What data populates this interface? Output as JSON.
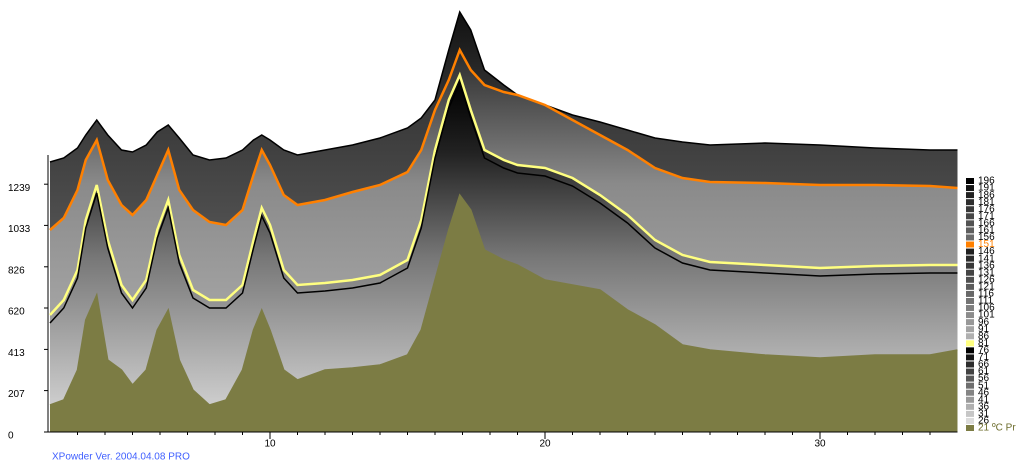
{
  "chart_data": {
    "type": "waterfall",
    "x": [
      2,
      2.5,
      3,
      3.3,
      3.7,
      4.1,
      4.6,
      5,
      5.5,
      5.9,
      6.3,
      6.7,
      7.2,
      7.8,
      8.4,
      9,
      9.4,
      9.7,
      10,
      10.5,
      11,
      12,
      13,
      14,
      15,
      15.5,
      16,
      16.5,
      16.9,
      17.3,
      17.8,
      18.5,
      19,
      20,
      21,
      22,
      23,
      24,
      25,
      26,
      28,
      30,
      32,
      34,
      35
    ],
    "xlim": [
      2,
      35
    ],
    "ylim": [
      0,
      2110
    ],
    "xticks": [
      10,
      20,
      30
    ],
    "xminorticks": [
      3,
      4,
      5,
      6,
      7,
      8,
      9,
      11,
      12,
      13,
      14,
      15,
      16,
      17,
      18,
      19,
      21,
      22,
      23,
      24,
      25,
      26,
      27,
      28,
      29,
      31,
      32,
      33,
      34
    ],
    "yticks": [
      0,
      207,
      413,
      620,
      826,
      1033,
      1239
    ],
    "legend_suffix": "ºC Pr",
    "footer": "XPowder Ver. 2004.04.08 PRO",
    "series": [
      {
        "name": "196",
        "color": "#000000",
        "values": [
          1350,
          1370,
          1420,
          1485,
          1560,
          1485,
          1410,
          1400,
          1435,
          1500,
          1535,
          1470,
          1385,
          1360,
          1370,
          1410,
          1460,
          1485,
          1460,
          1410,
          1385,
          1410,
          1435,
          1470,
          1520,
          1570,
          1660,
          1910,
          2100,
          2010,
          1810,
          1735,
          1685,
          1635,
          1585,
          1550,
          1510,
          1470,
          1450,
          1435,
          1445,
          1435,
          1420,
          1410,
          1410
        ]
      },
      {
        "name": "191",
        "color": "#151515"
      },
      {
        "name": "186",
        "color": "#222222"
      },
      {
        "name": "181",
        "color": "#2e2e2e"
      },
      {
        "name": "176",
        "color": "#3a3a3a"
      },
      {
        "name": "171",
        "color": "#464646"
      },
      {
        "name": "166",
        "color": "#525252"
      },
      {
        "name": "161",
        "color": "#5e5e5e"
      },
      {
        "name": "156",
        "color": "#6a6a6a"
      },
      {
        "name": "151",
        "color": "#ff8000",
        "values": [
          1010,
          1070,
          1210,
          1360,
          1460,
          1260,
          1135,
          1085,
          1160,
          1285,
          1410,
          1210,
          1110,
          1050,
          1035,
          1110,
          1285,
          1410,
          1335,
          1185,
          1135,
          1160,
          1200,
          1235,
          1300,
          1410,
          1610,
          1760,
          1910,
          1810,
          1735,
          1700,
          1685,
          1635,
          1560,
          1485,
          1410,
          1320,
          1270,
          1250,
          1245,
          1235,
          1235,
          1230,
          1220
        ]
      },
      {
        "name": "146",
        "color": "#202020"
      },
      {
        "name": "141",
        "color": "#2c2c2c"
      },
      {
        "name": "136",
        "color": "#383838"
      },
      {
        "name": "131",
        "color": "#444444"
      },
      {
        "name": "126",
        "color": "#505050"
      },
      {
        "name": "121",
        "color": "#5c5c5c"
      },
      {
        "name": "116",
        "color": "#686868"
      },
      {
        "name": "111",
        "color": "#747474"
      },
      {
        "name": "106",
        "color": "#808080"
      },
      {
        "name": "101",
        "color": "#8c8c8c"
      },
      {
        "name": "96",
        "color": "#989898"
      },
      {
        "name": "91",
        "color": "#a4a4a4"
      },
      {
        "name": "86",
        "color": "#b0b0b0"
      },
      {
        "name": "81",
        "color": "#ffff80",
        "values": [
          585,
          660,
          810,
          1060,
          1235,
          960,
          735,
          660,
          760,
          1010,
          1160,
          885,
          710,
          660,
          660,
          735,
          960,
          1120,
          1035,
          810,
          735,
          745,
          760,
          785,
          860,
          1060,
          1410,
          1660,
          1785,
          1610,
          1410,
          1360,
          1335,
          1320,
          1270,
          1185,
          1085,
          960,
          885,
          850,
          835,
          820,
          830,
          835,
          835
        ]
      },
      {
        "name": "76",
        "color": "#000000",
        "values": [
          545,
          620,
          770,
          1020,
          1195,
          920,
          695,
          620,
          720,
          970,
          1120,
          845,
          670,
          620,
          620,
          695,
          920,
          1080,
          995,
          770,
          695,
          705,
          720,
          745,
          820,
          1020,
          1370,
          1620,
          1745,
          1570,
          1370,
          1320,
          1295,
          1280,
          1230,
          1145,
          1045,
          920,
          845,
          810,
          795,
          780,
          790,
          795,
          795
        ]
      },
      {
        "name": "71",
        "color": "#161616"
      },
      {
        "name": "66",
        "color": "#2c2c2c"
      },
      {
        "name": "61",
        "color": "#424242"
      },
      {
        "name": "56",
        "color": "#585858"
      },
      {
        "name": "51",
        "color": "#6e6e6e"
      },
      {
        "name": "46",
        "color": "#848484"
      },
      {
        "name": "41",
        "color": "#9a9a9a"
      },
      {
        "name": "36",
        "color": "#b0b0b0"
      },
      {
        "name": "31",
        "color": "#c6c6c6"
      },
      {
        "name": "26",
        "color": "#dcdcdc"
      },
      {
        "name": "21",
        "color": "#7c7c44",
        "values": [
          135,
          160,
          310,
          560,
          685,
          360,
          310,
          235,
          310,
          510,
          610,
          360,
          210,
          135,
          160,
          310,
          510,
          610,
          510,
          310,
          260,
          310,
          320,
          335,
          385,
          510,
          760,
          1010,
          1185,
          1110,
          910,
          860,
          835,
          760,
          735,
          710,
          610,
          535,
          435,
          410,
          385,
          370,
          385,
          385,
          410
        ]
      }
    ]
  }
}
